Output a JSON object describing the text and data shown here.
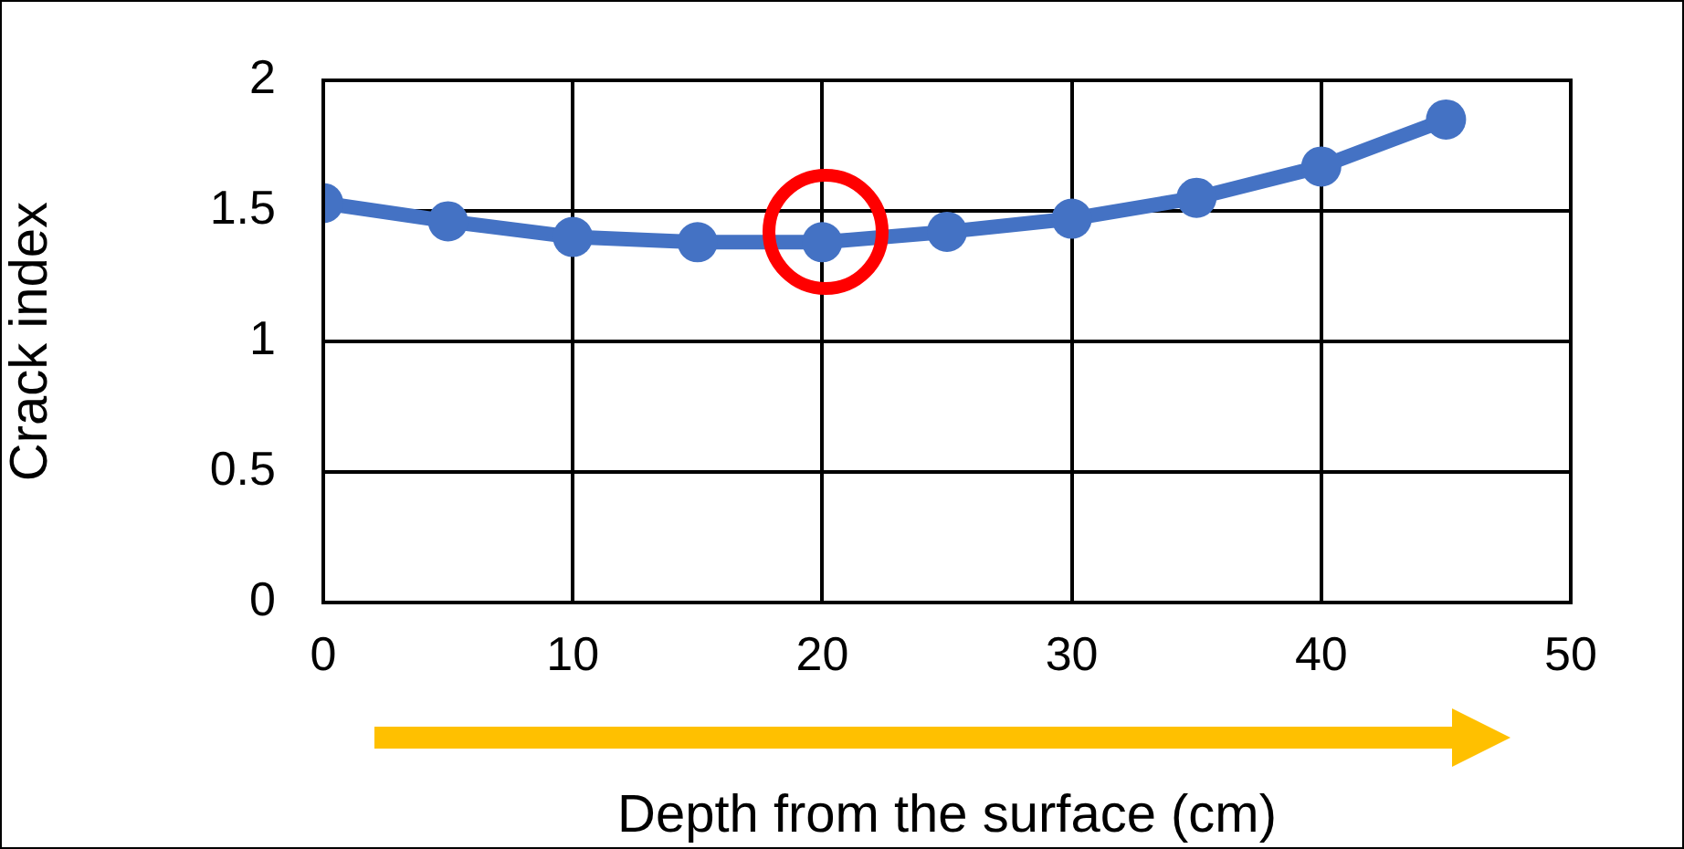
{
  "chart_data": {
    "type": "line",
    "xlabel": "Depth from the surface (cm)",
    "ylabel": "Crack index",
    "x": [
      0,
      5,
      10,
      15,
      20,
      25,
      30,
      35,
      40,
      45
    ],
    "series": [
      {
        "color": "#4472c4",
        "values": [
          1.53,
          1.46,
          1.4,
          1.38,
          1.38,
          1.42,
          1.47,
          1.55,
          1.67,
          1.85
        ]
      }
    ],
    "xlim": [
      0,
      50
    ],
    "xticks": [
      0,
      10,
      20,
      30,
      40,
      50
    ],
    "ylim": [
      0,
      2
    ],
    "yticks": [
      0,
      0.5,
      1,
      1.5,
      2
    ],
    "grid": true,
    "legend": false,
    "marker": "circle",
    "line_style": "solid"
  }
}
